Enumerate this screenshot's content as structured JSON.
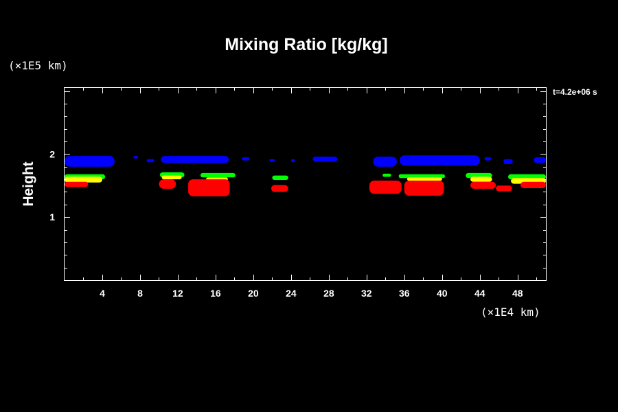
{
  "chart_data": {
    "type": "contour",
    "title": "Mixing Ratio [kg/kg]",
    "ylabel": "Height",
    "xlabel": "",
    "x_unit": "(×1E4 km)",
    "y_unit": "(×1E5 km)",
    "timestamp": "t=4.2e+06 s",
    "xlim": [
      0,
      51
    ],
    "ylim": [
      0,
      3.05
    ],
    "x_ticks": [
      4,
      8,
      12,
      16,
      20,
      24,
      28,
      32,
      36,
      40,
      44,
      48
    ],
    "y_ticks": [
      1,
      2
    ],
    "colors": {
      "blue": "#0000ff",
      "green": "#00ff00",
      "yellow": "#ffff00",
      "red": "#ff0000"
    },
    "regions": [
      {
        "color": "blue",
        "x": [
          0,
          5.3
        ],
        "y": [
          1.8,
          1.97
        ]
      },
      {
        "color": "blue",
        "x": [
          7.3,
          7.8
        ],
        "y": [
          1.93,
          1.97
        ]
      },
      {
        "color": "blue",
        "x": [
          8.7,
          9.5
        ],
        "y": [
          1.87,
          1.92
        ]
      },
      {
        "color": "blue",
        "x": [
          10.2,
          17.4
        ],
        "y": [
          1.86,
          1.97
        ]
      },
      {
        "color": "blue",
        "x": [
          18.8,
          19.6
        ],
        "y": [
          1.9,
          1.95
        ]
      },
      {
        "color": "blue",
        "x": [
          21.7,
          22.3
        ],
        "y": [
          1.88,
          1.92
        ]
      },
      {
        "color": "blue",
        "x": [
          24.0,
          24.4
        ],
        "y": [
          1.87,
          1.92
        ]
      },
      {
        "color": "blue",
        "x": [
          26.3,
          28.9
        ],
        "y": [
          1.88,
          1.96
        ]
      },
      {
        "color": "blue",
        "x": [
          32.7,
          35.2
        ],
        "y": [
          1.8,
          1.96
        ]
      },
      {
        "color": "blue",
        "x": [
          35.5,
          44.0
        ],
        "y": [
          1.82,
          1.98
        ]
      },
      {
        "color": "blue",
        "x": [
          44.5,
          45.2
        ],
        "y": [
          1.9,
          1.95
        ]
      },
      {
        "color": "blue",
        "x": [
          46.5,
          47.5
        ],
        "y": [
          1.84,
          1.92
        ]
      },
      {
        "color": "blue",
        "x": [
          49.7,
          51
        ],
        "y": [
          1.86,
          1.95
        ]
      },
      {
        "color": "green",
        "x": [
          0,
          4.3
        ],
        "y": [
          1.6,
          1.68
        ]
      },
      {
        "color": "green",
        "x": [
          10.1,
          12.7
        ],
        "y": [
          1.63,
          1.71
        ]
      },
      {
        "color": "green",
        "x": [
          14.4,
          18.1
        ],
        "y": [
          1.63,
          1.7
        ]
      },
      {
        "color": "green",
        "x": [
          22.0,
          23.7
        ],
        "y": [
          1.59,
          1.66
        ]
      },
      {
        "color": "green",
        "x": [
          33.7,
          34.6
        ],
        "y": [
          1.64,
          1.69
        ]
      },
      {
        "color": "green",
        "x": [
          35.4,
          40.3
        ],
        "y": [
          1.62,
          1.68
        ]
      },
      {
        "color": "green",
        "x": [
          42.5,
          45.3
        ],
        "y": [
          1.62,
          1.7
        ]
      },
      {
        "color": "green",
        "x": [
          47.0,
          51
        ],
        "y": [
          1.6,
          1.68
        ]
      },
      {
        "color": "yellow",
        "x": [
          0,
          4.0
        ],
        "y": [
          1.55,
          1.64
        ]
      },
      {
        "color": "yellow",
        "x": [
          10.3,
          12.4
        ],
        "y": [
          1.6,
          1.66
        ]
      },
      {
        "color": "yellow",
        "x": [
          15.0,
          17.3
        ],
        "y": [
          1.58,
          1.63
        ]
      },
      {
        "color": "yellow",
        "x": [
          36.3,
          40.0
        ],
        "y": [
          1.58,
          1.63
        ]
      },
      {
        "color": "yellow",
        "x": [
          43.0,
          45.3
        ],
        "y": [
          1.56,
          1.64
        ]
      },
      {
        "color": "yellow",
        "x": [
          47.3,
          51
        ],
        "y": [
          1.53,
          1.62
        ]
      },
      {
        "color": "red",
        "x": [
          0,
          2.5
        ],
        "y": [
          1.48,
          1.56
        ]
      },
      {
        "color": "red",
        "x": [
          10.0,
          11.8
        ],
        "y": [
          1.45,
          1.6
        ]
      },
      {
        "color": "red",
        "x": [
          13.1,
          17.5
        ],
        "y": [
          1.33,
          1.6
        ]
      },
      {
        "color": "red",
        "x": [
          21.9,
          23.7
        ],
        "y": [
          1.4,
          1.51
        ]
      },
      {
        "color": "red",
        "x": [
          32.3,
          35.7
        ],
        "y": [
          1.37,
          1.58
        ]
      },
      {
        "color": "red",
        "x": [
          36.0,
          40.2
        ],
        "y": [
          1.34,
          1.58
        ]
      },
      {
        "color": "red",
        "x": [
          43.0,
          45.7
        ],
        "y": [
          1.45,
          1.56
        ]
      },
      {
        "color": "red",
        "x": [
          45.7,
          47.4
        ],
        "y": [
          1.41,
          1.5
        ]
      },
      {
        "color": "red",
        "x": [
          48.3,
          51
        ],
        "y": [
          1.46,
          1.56
        ]
      }
    ]
  }
}
